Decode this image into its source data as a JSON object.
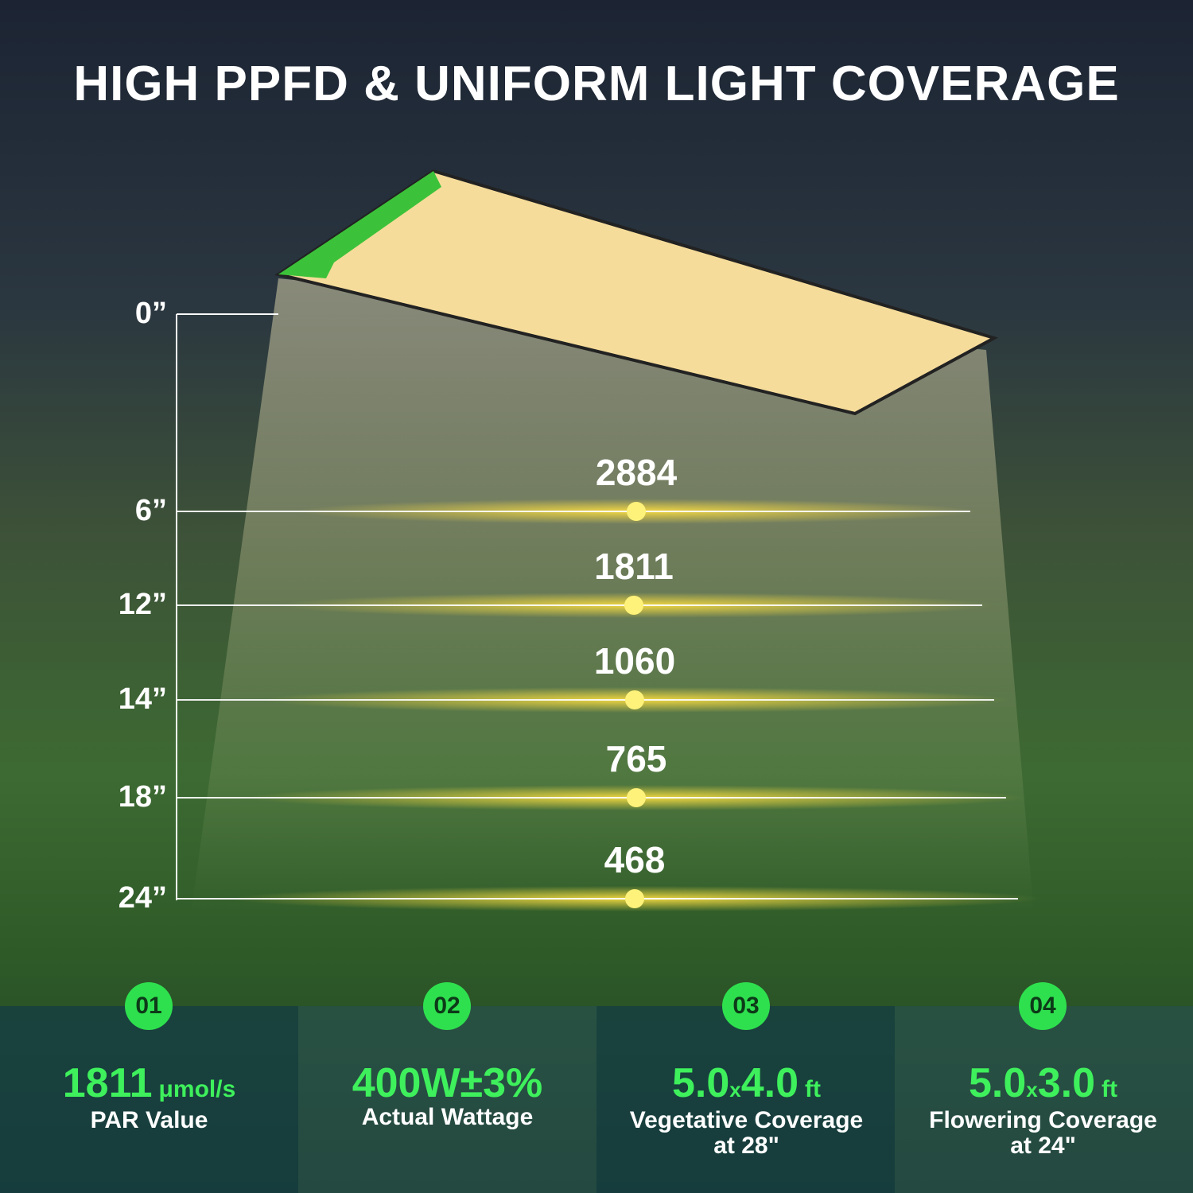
{
  "title": "HIGH PPFD & UNIFORM LIGHT COVERAGE",
  "scale": {
    "top_label": "0”",
    "rows": [
      {
        "height": "6”",
        "ppfd": 2884
      },
      {
        "height": "12”",
        "ppfd": 1811
      },
      {
        "height": "14”",
        "ppfd": 1060
      },
      {
        "height": "18”",
        "ppfd": 765
      },
      {
        "height": "24”",
        "ppfd": 468
      }
    ]
  },
  "features": [
    {
      "badge": "01",
      "value": "1811",
      "unit": "μmol/s",
      "label": "PAR Value"
    },
    {
      "badge": "02",
      "value": "400W±3%",
      "label": "Actual Wattage"
    },
    {
      "badge": "03",
      "width": "5.0",
      "times": "x",
      "depth": "4.0",
      "unit": "ft",
      "label": "Vegetative Coverage",
      "sublabel": "at 28\""
    },
    {
      "badge": "04",
      "width": "5.0",
      "times": "x",
      "depth": "3.0",
      "unit": "ft",
      "label": "Flowering Coverage",
      "sublabel": "at 24\""
    }
  ]
}
